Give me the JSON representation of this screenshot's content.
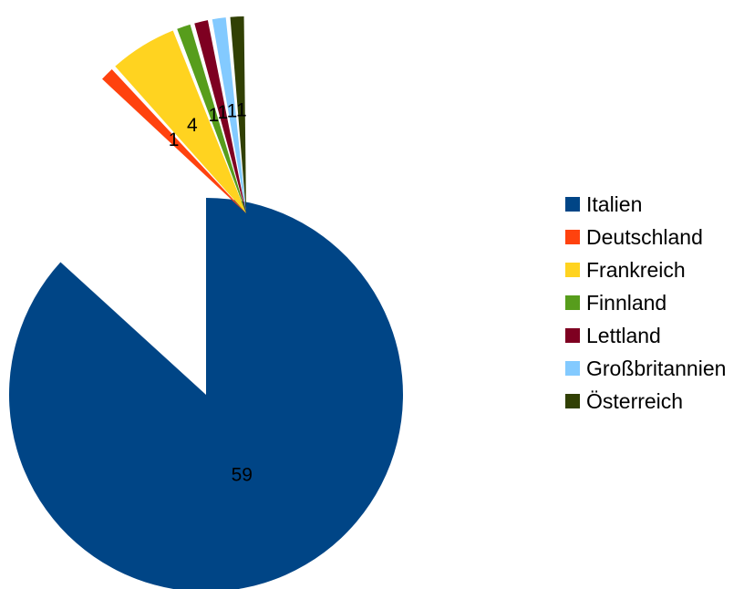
{
  "chart_data": {
    "type": "pie",
    "title": "",
    "exploded": true,
    "legend_position": "right",
    "categories": [
      "Italien",
      "Deutschland",
      "Frankreich",
      "Finnland",
      "Lettland",
      "Großbritannien",
      "Österreich"
    ],
    "values": [
      59,
      1,
      4,
      1,
      1,
      1,
      1
    ],
    "data_labels": [
      "59",
      "1",
      "4",
      "1",
      "1",
      "1",
      "1"
    ],
    "colors": [
      "#004586",
      "#ff420e",
      "#ffd320",
      "#579d1c",
      "#7e0021",
      "#83caff",
      "#314004"
    ]
  }
}
